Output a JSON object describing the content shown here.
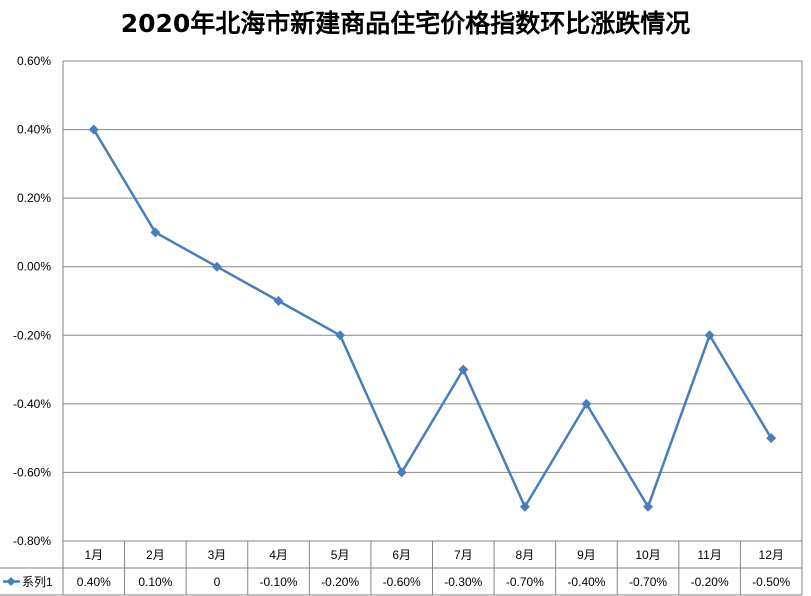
{
  "chart_data": {
    "type": "line",
    "title": "2020年北海市新建商品住宅价格指数环比涨跌情况",
    "categories": [
      "1月",
      "2月",
      "3月",
      "4月",
      "5月",
      "6月",
      "7月",
      "8月",
      "9月",
      "10月",
      "11月",
      "12月"
    ],
    "series": [
      {
        "name": "系列1",
        "values": [
          0.4,
          0.1,
          0.0,
          -0.1,
          -0.2,
          -0.6,
          -0.3,
          -0.7,
          -0.4,
          -0.7,
          -0.2,
          -0.5
        ],
        "labels": [
          "0.40%",
          "0.10%",
          "0",
          "-0.10%",
          "-0.20%",
          "-0.60%",
          "-0.30%",
          "-0.70%",
          "-0.40%",
          "-0.70%",
          "-0.20%",
          "-0.50%"
        ],
        "color": "#4a7ebb",
        "marker": "diamond"
      }
    ],
    "y_ticks": [
      "0.60%",
      "0.40%",
      "0.20%",
      "0.00%",
      "-0.20%",
      "-0.40%",
      "-0.60%",
      "-0.80%"
    ],
    "ylim": [
      -0.8,
      0.6
    ],
    "grid": true,
    "data_table": true,
    "xlabel": "",
    "ylabel": ""
  }
}
